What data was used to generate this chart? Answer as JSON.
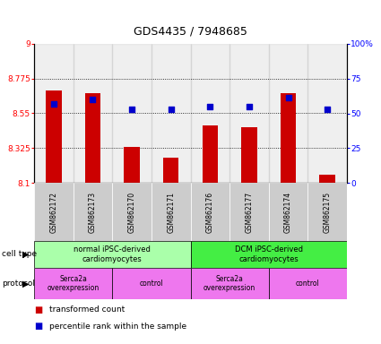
{
  "title": "GDS4435 / 7948685",
  "samples": [
    "GSM862172",
    "GSM862173",
    "GSM862170",
    "GSM862171",
    "GSM862176",
    "GSM862177",
    "GSM862174",
    "GSM862175"
  ],
  "transformed_counts": [
    8.7,
    8.68,
    8.33,
    8.26,
    8.47,
    8.46,
    8.68,
    8.15
  ],
  "percentile_ranks": [
    57,
    60,
    53,
    53,
    55,
    55,
    61,
    53
  ],
  "ylim_left": [
    8.1,
    9.0
  ],
  "ylim_right": [
    0,
    100
  ],
  "yticks_left": [
    8.1,
    8.325,
    8.55,
    8.775,
    9.0
  ],
  "ytick_labels_left": [
    "8.1",
    "8.325",
    "8.55",
    "8.775",
    "9"
  ],
  "yticks_right": [
    0,
    25,
    50,
    75,
    100
  ],
  "ytick_labels_right": [
    "0",
    "25",
    "50",
    "75",
    "100%"
  ],
  "bar_color": "#cc0000",
  "dot_color": "#0000cc",
  "cell_type_groups": [
    {
      "label": "normal iPSC-derived\ncardiomyocytes",
      "start": 0,
      "end": 4,
      "color": "#aaffaa"
    },
    {
      "label": "DCM iPSC-derived\ncardiomyocytes",
      "start": 4,
      "end": 8,
      "color": "#44ee44"
    }
  ],
  "protocol_groups": [
    {
      "label": "Serca2a\noverexpression",
      "start": 0,
      "end": 2,
      "color": "#ee77ee"
    },
    {
      "label": "control",
      "start": 2,
      "end": 4,
      "color": "#ee77ee"
    },
    {
      "label": "Serca2a\noverexpression",
      "start": 4,
      "end": 6,
      "color": "#ee77ee"
    },
    {
      "label": "control",
      "start": 6,
      "end": 8,
      "color": "#ee77ee"
    }
  ],
  "legend_bar_label": "transformed count",
  "legend_dot_label": "percentile rank within the sample",
  "cell_type_label": "cell type",
  "protocol_label": "protocol",
  "background_color": "#ffffff",
  "sample_bg_color": "#cccccc"
}
